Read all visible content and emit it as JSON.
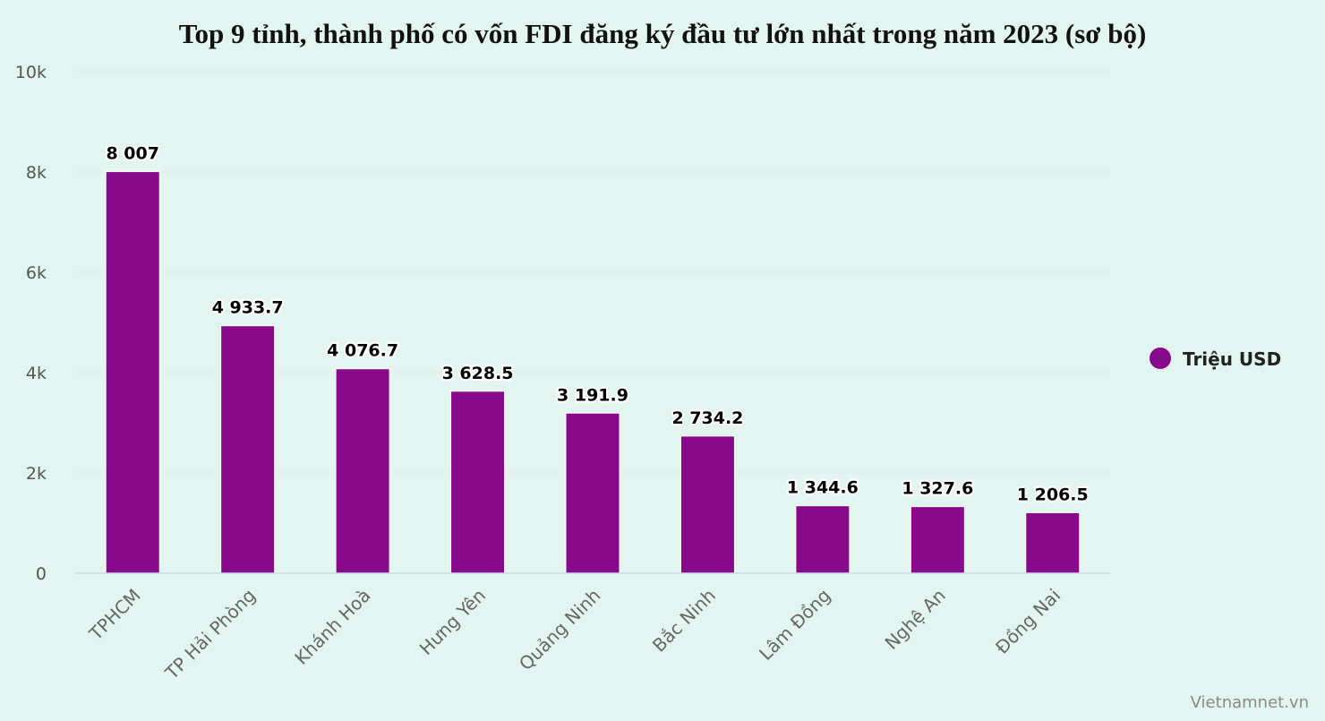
{
  "chart_data": {
    "type": "bar",
    "title": "Top 9 tỉnh, thành phố có vốn FDI đăng ký đầu tư lớn nhất trong năm 2023 (sơ bộ)",
    "categories": [
      "TPHCM",
      "TP Hải Phòng",
      "Khánh Hoà",
      "Hưng Yên",
      "Quảng Ninh",
      "Bắc Ninh",
      "Lâm Đồng",
      "Nghệ An",
      "Đồng Nai"
    ],
    "series": [
      {
        "name": "Triệu USD",
        "color": "#870a8c",
        "values": [
          8007,
          4933.7,
          4076.7,
          3628.5,
          3191.9,
          2734.2,
          1344.6,
          1327.6,
          1206.5
        ],
        "labels": [
          "8 007",
          "4 933.7",
          "4 076.7",
          "3 628.5",
          "3 191.9",
          "2 734.2",
          "1 344.6",
          "1 327.6",
          "1 206.5"
        ]
      }
    ],
    "ylim": [
      0,
      10000
    ],
    "yticks": [
      0,
      2000,
      4000,
      6000,
      8000,
      10000
    ],
    "ytick_labels": [
      "0",
      "2k",
      "4k",
      "6k",
      "8k",
      "10k"
    ],
    "xlabel": "",
    "ylabel": "",
    "grid": true,
    "legend": "right"
  },
  "credit": "Vietnamnet.vn",
  "colors": {
    "background": "#e3f5f1",
    "grid": "#e6e6e6",
    "axis": "#ccd6eb"
  }
}
